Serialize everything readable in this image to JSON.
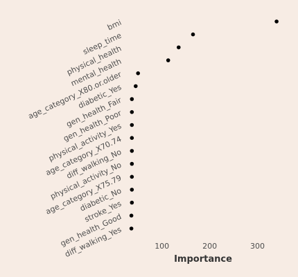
{
  "chart_data": {
    "type": "scatter",
    "title": "",
    "xlabel": "Importance",
    "ylabel": "",
    "xlim": [
      25,
      350
    ],
    "xticks": [
      100,
      200,
      300
    ],
    "grid": false,
    "legend": "none",
    "point_color": "#000000",
    "background": "#f7ece4",
    "categories": [
      "bmi",
      "sleep_time",
      "physical_health",
      "mental_health",
      "age_category_X80.or.older",
      "diabetic_Yes",
      "gen_health_Fair",
      "gen_health_Poor",
      "physical_activity_Yes",
      "age_category_X70.74",
      "diff_walking_No",
      "physical_activity_No",
      "age_category_X75.79",
      "diabetic_No",
      "stroke_Yes",
      "gen_health_Good",
      "diff_walking_Yes"
    ],
    "values": [
      340,
      165,
      135,
      113,
      50,
      45,
      37,
      37,
      37,
      37,
      37,
      37,
      37,
      37,
      37,
      36,
      36
    ]
  }
}
